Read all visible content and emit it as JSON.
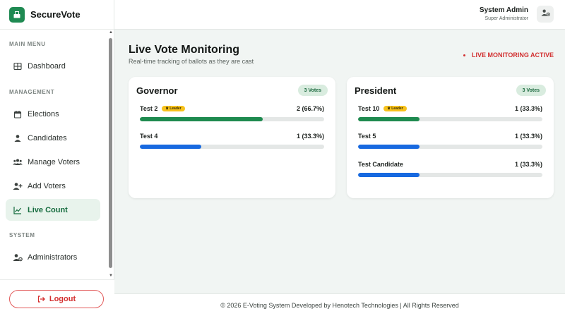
{
  "app": {
    "name": "SecureVote"
  },
  "sidebar": {
    "sections": {
      "main": "MAIN MENU",
      "management": "MANAGEMENT",
      "system": "SYSTEM"
    },
    "items": {
      "dashboard": "Dashboard",
      "elections": "Elections",
      "candidates": "Candidates",
      "manage_voters": "Manage Voters",
      "add_voters": "Add Voters",
      "live_count": "Live Count",
      "administrators": "Administrators"
    },
    "active_item": "live_count",
    "logout": "Logout"
  },
  "header": {
    "user_name": "System Admin",
    "user_role": "Super Administrator"
  },
  "main": {
    "title": "Live Vote Monitoring",
    "subtitle": "Real-time tracking of ballots as they are cast",
    "status": "LIVE MONITORING ACTIVE"
  },
  "races": [
    {
      "title": "Governor",
      "total": "3 Votes",
      "candidates": [
        {
          "name": "Test 2",
          "leader": "Leader",
          "count": "2 (66.7%)",
          "pct": 66.7,
          "color": "#1e8a4f"
        },
        {
          "name": "Test 4",
          "leader": "",
          "count": "1 (33.3%)",
          "pct": 33.3,
          "color": "#1769e0"
        }
      ]
    },
    {
      "title": "President",
      "total": "3 Votes",
      "candidates": [
        {
          "name": "Test 10",
          "leader": "Leader",
          "count": "1 (33.3%)",
          "pct": 33.3,
          "color": "#1e8a4f"
        },
        {
          "name": "Test 5",
          "leader": "",
          "count": "1 (33.3%)",
          "pct": 33.3,
          "color": "#1769e0"
        },
        {
          "name": "Test Candidate",
          "leader": "",
          "count": "1 (33.3%)",
          "pct": 33.3,
          "color": "#1769e0"
        }
      ]
    }
  ],
  "colors": {
    "brand": "#1f8a52",
    "leader_bar": "#1e8a4f",
    "other_bar": "#1769e0",
    "alert": "#d23232"
  },
  "footer": {
    "text": "© 2026 E-Voting System Developed by Henotech Technologies | All Rights Reserved"
  }
}
